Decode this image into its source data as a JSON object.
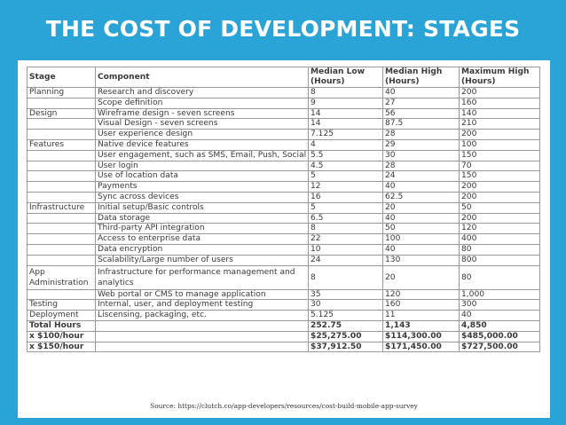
{
  "slide": {
    "title": "THE COST OF DEVELOPMENT: STAGES",
    "background_color": "#2aa3d6",
    "source": "Source: https://clutch.co/app-developers/resources/cost-build-mobile-app-survey"
  },
  "table": {
    "headers": {
      "stage": "Stage",
      "component": "Component",
      "median_low": "Median Low (Hours)",
      "median_high": "Median High (Hours)",
      "maximum_high": "Maximum High (Hours)"
    },
    "rows": [
      {
        "stage": "Planning",
        "component": "Research and discovery",
        "low": "8",
        "high": "40",
        "max": "200"
      },
      {
        "stage": "",
        "component": "Scope definition",
        "low": "9",
        "high": "27",
        "max": "160"
      },
      {
        "stage": "Design",
        "component": "Wireframe design - seven screens",
        "low": "14",
        "high": "56",
        "max": "140"
      },
      {
        "stage": "",
        "component": "Visual Design - seven screens",
        "low": "14",
        "high": "87.5",
        "max": "210"
      },
      {
        "stage": "",
        "component": "User experience design",
        "low": "7.125",
        "high": "28",
        "max": "200"
      },
      {
        "stage": "Features",
        "component": "Native device features",
        "low": "4",
        "high": "29",
        "max": "100"
      },
      {
        "stage": "",
        "component": "User engagement, such as SMS, Email, Push, Social",
        "low": "5.5",
        "high": "30",
        "max": "150"
      },
      {
        "stage": "",
        "component": "User login",
        "low": "4.5",
        "high": "28",
        "max": "70"
      },
      {
        "stage": "",
        "component": "Use of location data",
        "low": "5",
        "high": "24",
        "max": "150"
      },
      {
        "stage": "",
        "component": "Payments",
        "low": "12",
        "high": "40",
        "max": "200"
      },
      {
        "stage": "",
        "component": "Sync across devices",
        "low": "16",
        "high": "62.5",
        "max": "200"
      },
      {
        "stage": "Infrastructure",
        "component": "Initial setup/Basic controls",
        "low": "5",
        "high": "20",
        "max": "50"
      },
      {
        "stage": "",
        "component": "Data storage",
        "low": "6.5",
        "high": "40",
        "max": "200"
      },
      {
        "stage": "",
        "component": "Third-party API integration",
        "low": "8",
        "high": "50",
        "max": "120"
      },
      {
        "stage": "",
        "component": "Access to enterprise data",
        "low": "22",
        "high": "100",
        "max": "400"
      },
      {
        "stage": "",
        "component": "Data encryption",
        "low": "10",
        "high": "40",
        "max": "80"
      },
      {
        "stage": "",
        "component": "Scalability/Large number of users",
        "low": "24",
        "high": "130",
        "max": "800"
      },
      {
        "stage": "App Administration",
        "component": "Infrastructure for performance management and analytics",
        "low": "8",
        "high": "20",
        "max": "80"
      },
      {
        "stage": "",
        "component": "Web portal or CMS to manage application",
        "low": "35",
        "high": "120",
        "max": "1,000"
      },
      {
        "stage": "Testing",
        "component": "Internal, user, and deployment testing",
        "low": "30",
        "high": "160",
        "max": "300"
      },
      {
        "stage": "Deployment",
        "component": "Liscensing, packaging, etc.",
        "low": "5.125",
        "high": "11",
        "max": "40"
      }
    ],
    "totals": [
      {
        "label": "Total Hours",
        "low": "252.75",
        "high": "1,143",
        "max": "4,850"
      },
      {
        "label": "x $100/hour",
        "low": "$25,275.00",
        "high": "$114,300.00",
        "max": "$485,000.00"
      },
      {
        "label": "x $150/hour",
        "low": "$37,912.50",
        "high": "$171,450.00",
        "max": "$727,500.00"
      }
    ]
  }
}
